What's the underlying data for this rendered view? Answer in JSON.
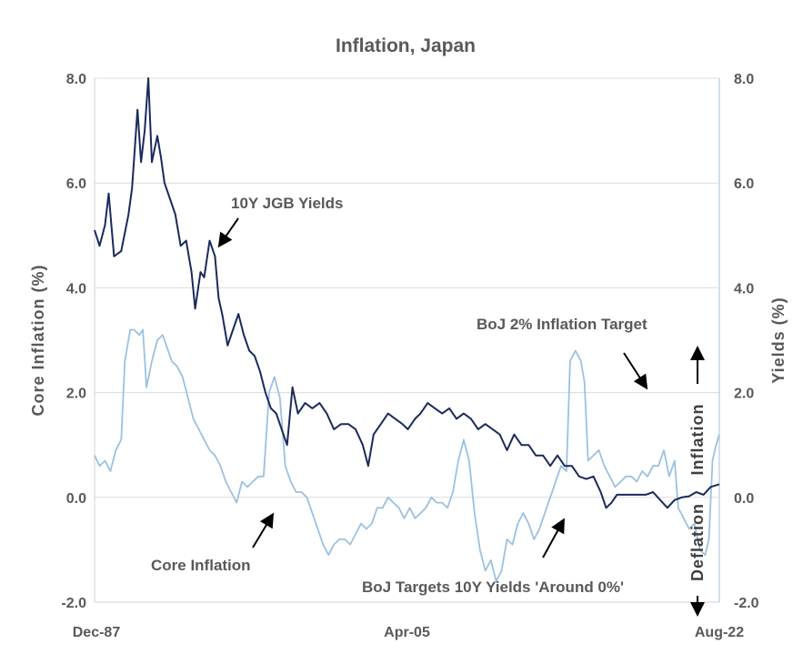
{
  "chart_data": {
    "type": "line",
    "title": "Inflation, Japan",
    "ylabel_left": "Core  Inflation  (%)",
    "ylabel_right": "Yields  (%)",
    "ylim": [
      -2,
      8
    ],
    "y_ticks": [
      "8.0",
      "6.0",
      "4.0",
      "2.0",
      "0.0",
      "-2.0"
    ],
    "y_tick_values": [
      8,
      6,
      4,
      2,
      0,
      -2
    ],
    "x_ticks": [
      "Dec-87",
      "Apr-05",
      "Aug-22"
    ],
    "x_tick_values": [
      1987.92,
      2005.25,
      2022.58
    ],
    "xlim": [
      1987.92,
      2022.58
    ],
    "grid": true,
    "series": [
      {
        "name": "10Y JGB Yields",
        "color": "#1a2a5c",
        "points": [
          [
            1987.92,
            5.1
          ],
          [
            1988.2,
            4.8
          ],
          [
            1988.5,
            5.2
          ],
          [
            1988.7,
            5.8
          ],
          [
            1989.0,
            4.6
          ],
          [
            1989.4,
            4.7
          ],
          [
            1989.8,
            5.4
          ],
          [
            1990.0,
            5.9
          ],
          [
            1990.3,
            7.4
          ],
          [
            1990.5,
            6.4
          ],
          [
            1990.7,
            7.0
          ],
          [
            1990.9,
            8.0
          ],
          [
            1991.1,
            6.4
          ],
          [
            1991.4,
            6.9
          ],
          [
            1991.6,
            6.5
          ],
          [
            1991.8,
            6.0
          ],
          [
            1992.1,
            5.7
          ],
          [
            1992.4,
            5.4
          ],
          [
            1992.7,
            4.8
          ],
          [
            1993.0,
            4.9
          ],
          [
            1993.3,
            4.3
          ],
          [
            1993.5,
            3.6
          ],
          [
            1993.8,
            4.3
          ],
          [
            1994.0,
            4.2
          ],
          [
            1994.3,
            4.9
          ],
          [
            1994.6,
            4.6
          ],
          [
            1994.8,
            3.8
          ],
          [
            1995.0,
            3.5
          ],
          [
            1995.3,
            2.9
          ],
          [
            1995.6,
            3.2
          ],
          [
            1995.9,
            3.5
          ],
          [
            1996.2,
            3.1
          ],
          [
            1996.5,
            2.8
          ],
          [
            1996.8,
            2.7
          ],
          [
            1997.1,
            2.4
          ],
          [
            1997.4,
            2.0
          ],
          [
            1997.7,
            1.7
          ],
          [
            1998.0,
            1.6
          ],
          [
            1998.3,
            1.3
          ],
          [
            1998.6,
            1.0
          ],
          [
            1998.9,
            2.1
          ],
          [
            1999.2,
            1.6
          ],
          [
            1999.6,
            1.8
          ],
          [
            2000.0,
            1.7
          ],
          [
            2000.4,
            1.8
          ],
          [
            2000.8,
            1.6
          ],
          [
            2001.2,
            1.3
          ],
          [
            2001.6,
            1.4
          ],
          [
            2002.0,
            1.4
          ],
          [
            2002.4,
            1.3
          ],
          [
            2002.8,
            1.0
          ],
          [
            2003.1,
            0.6
          ],
          [
            2003.4,
            1.2
          ],
          [
            2003.8,
            1.4
          ],
          [
            2004.2,
            1.6
          ],
          [
            2004.6,
            1.5
          ],
          [
            2005.0,
            1.4
          ],
          [
            2005.3,
            1.3
          ],
          [
            2005.7,
            1.5
          ],
          [
            2006.0,
            1.6
          ],
          [
            2006.4,
            1.8
          ],
          [
            2006.8,
            1.7
          ],
          [
            2007.2,
            1.6
          ],
          [
            2007.6,
            1.7
          ],
          [
            2008.0,
            1.5
          ],
          [
            2008.4,
            1.6
          ],
          [
            2008.8,
            1.5
          ],
          [
            2009.2,
            1.3
          ],
          [
            2009.6,
            1.4
          ],
          [
            2010.0,
            1.3
          ],
          [
            2010.4,
            1.2
          ],
          [
            2010.8,
            0.9
          ],
          [
            2011.2,
            1.2
          ],
          [
            2011.6,
            1.0
          ],
          [
            2012.0,
            1.0
          ],
          [
            2012.4,
            0.8
          ],
          [
            2012.8,
            0.8
          ],
          [
            2013.2,
            0.6
          ],
          [
            2013.6,
            0.8
          ],
          [
            2014.0,
            0.6
          ],
          [
            2014.4,
            0.6
          ],
          [
            2014.8,
            0.4
          ],
          [
            2015.2,
            0.35
          ],
          [
            2015.6,
            0.4
          ],
          [
            2016.0,
            0.1
          ],
          [
            2016.3,
            -0.2
          ],
          [
            2016.6,
            -0.1
          ],
          [
            2016.9,
            0.05
          ],
          [
            2017.3,
            0.05
          ],
          [
            2017.7,
            0.05
          ],
          [
            2018.1,
            0.05
          ],
          [
            2018.5,
            0.05
          ],
          [
            2018.9,
            0.1
          ],
          [
            2019.3,
            -0.05
          ],
          [
            2019.7,
            -0.2
          ],
          [
            2020.1,
            -0.05
          ],
          [
            2020.5,
            0.0
          ],
          [
            2020.9,
            0.02
          ],
          [
            2021.3,
            0.1
          ],
          [
            2021.7,
            0.05
          ],
          [
            2022.1,
            0.2
          ],
          [
            2022.58,
            0.25
          ]
        ]
      },
      {
        "name": "Core Inflation",
        "color": "#9cc1e0",
        "points": [
          [
            1987.92,
            0.8
          ],
          [
            1988.2,
            0.6
          ],
          [
            1988.5,
            0.7
          ],
          [
            1988.8,
            0.5
          ],
          [
            1989.1,
            0.9
          ],
          [
            1989.4,
            1.1
          ],
          [
            1989.6,
            2.6
          ],
          [
            1989.9,
            3.2
          ],
          [
            1990.1,
            3.2
          ],
          [
            1990.4,
            3.1
          ],
          [
            1990.6,
            3.2
          ],
          [
            1990.8,
            2.1
          ],
          [
            1991.1,
            2.6
          ],
          [
            1991.4,
            3.0
          ],
          [
            1991.7,
            3.1
          ],
          [
            1991.9,
            2.9
          ],
          [
            1992.2,
            2.6
          ],
          [
            1992.5,
            2.5
          ],
          [
            1992.8,
            2.3
          ],
          [
            1993.1,
            1.9
          ],
          [
            1993.4,
            1.5
          ],
          [
            1993.7,
            1.3
          ],
          [
            1994.0,
            1.1
          ],
          [
            1994.3,
            0.9
          ],
          [
            1994.6,
            0.8
          ],
          [
            1994.9,
            0.6
          ],
          [
            1995.2,
            0.3
          ],
          [
            1995.5,
            0.1
          ],
          [
            1995.8,
            -0.1
          ],
          [
            1996.1,
            0.3
          ],
          [
            1996.4,
            0.2
          ],
          [
            1996.7,
            0.3
          ],
          [
            1997.0,
            0.4
          ],
          [
            1997.3,
            0.4
          ],
          [
            1997.6,
            2.0
          ],
          [
            1997.9,
            2.3
          ],
          [
            1998.2,
            1.9
          ],
          [
            1998.5,
            0.6
          ],
          [
            1998.8,
            0.3
          ],
          [
            1999.1,
            0.1
          ],
          [
            1999.4,
            0.1
          ],
          [
            1999.7,
            0.0
          ],
          [
            2000.0,
            -0.3
          ],
          [
            2000.3,
            -0.6
          ],
          [
            2000.6,
            -0.9
          ],
          [
            2000.9,
            -1.1
          ],
          [
            2001.2,
            -0.9
          ],
          [
            2001.5,
            -0.8
          ],
          [
            2001.8,
            -0.8
          ],
          [
            2002.1,
            -0.9
          ],
          [
            2002.4,
            -0.7
          ],
          [
            2002.7,
            -0.5
          ],
          [
            2003.0,
            -0.6
          ],
          [
            2003.3,
            -0.5
          ],
          [
            2003.6,
            -0.2
          ],
          [
            2003.9,
            -0.2
          ],
          [
            2004.2,
            0.0
          ],
          [
            2004.5,
            -0.1
          ],
          [
            2004.8,
            -0.2
          ],
          [
            2005.1,
            -0.4
          ],
          [
            2005.4,
            -0.2
          ],
          [
            2005.7,
            -0.4
          ],
          [
            2006.0,
            -0.3
          ],
          [
            2006.3,
            -0.2
          ],
          [
            2006.6,
            0.0
          ],
          [
            2006.9,
            -0.1
          ],
          [
            2007.2,
            -0.1
          ],
          [
            2007.5,
            -0.2
          ],
          [
            2007.8,
            0.1
          ],
          [
            2008.1,
            0.7
          ],
          [
            2008.4,
            1.1
          ],
          [
            2008.7,
            0.7
          ],
          [
            2009.0,
            -0.3
          ],
          [
            2009.3,
            -1.0
          ],
          [
            2009.6,
            -1.4
          ],
          [
            2009.9,
            -1.2
          ],
          [
            2010.2,
            -1.6
          ],
          [
            2010.5,
            -1.4
          ],
          [
            2010.8,
            -0.8
          ],
          [
            2011.1,
            -0.9
          ],
          [
            2011.4,
            -0.5
          ],
          [
            2011.7,
            -0.3
          ],
          [
            2012.0,
            -0.5
          ],
          [
            2012.3,
            -0.8
          ],
          [
            2012.6,
            -0.6
          ],
          [
            2012.9,
            -0.3
          ],
          [
            2013.2,
            0.0
          ],
          [
            2013.5,
            0.3
          ],
          [
            2013.8,
            0.6
          ],
          [
            2014.1,
            0.5
          ],
          [
            2014.3,
            2.6
          ],
          [
            2014.6,
            2.8
          ],
          [
            2014.9,
            2.6
          ],
          [
            2015.1,
            2.2
          ],
          [
            2015.3,
            0.7
          ],
          [
            2015.6,
            0.8
          ],
          [
            2015.9,
            0.9
          ],
          [
            2016.2,
            0.6
          ],
          [
            2016.5,
            0.4
          ],
          [
            2016.8,
            0.2
          ],
          [
            2017.1,
            0.3
          ],
          [
            2017.4,
            0.4
          ],
          [
            2017.7,
            0.4
          ],
          [
            2018.0,
            0.3
          ],
          [
            2018.3,
            0.5
          ],
          [
            2018.6,
            0.4
          ],
          [
            2018.9,
            0.6
          ],
          [
            2019.2,
            0.6
          ],
          [
            2019.5,
            0.9
          ],
          [
            2019.8,
            0.4
          ],
          [
            2020.1,
            0.7
          ],
          [
            2020.3,
            -0.2
          ],
          [
            2020.6,
            -0.4
          ],
          [
            2020.9,
            -0.6
          ],
          [
            2021.2,
            -0.5
          ],
          [
            2021.5,
            -1.0
          ],
          [
            2021.8,
            -1.1
          ],
          [
            2022.0,
            -0.8
          ],
          [
            2022.2,
            0.7
          ],
          [
            2022.4,
            1.0
          ],
          [
            2022.58,
            1.2
          ]
        ]
      }
    ],
    "annotations": [
      "10Y JGB Yields",
      "Core Inflation",
      "BoJ 2% Inflation Target",
      "BoJ Targets 10Y Yields 'Around 0%'"
    ],
    "side_labels": [
      "Inflation",
      "Deflation"
    ]
  }
}
